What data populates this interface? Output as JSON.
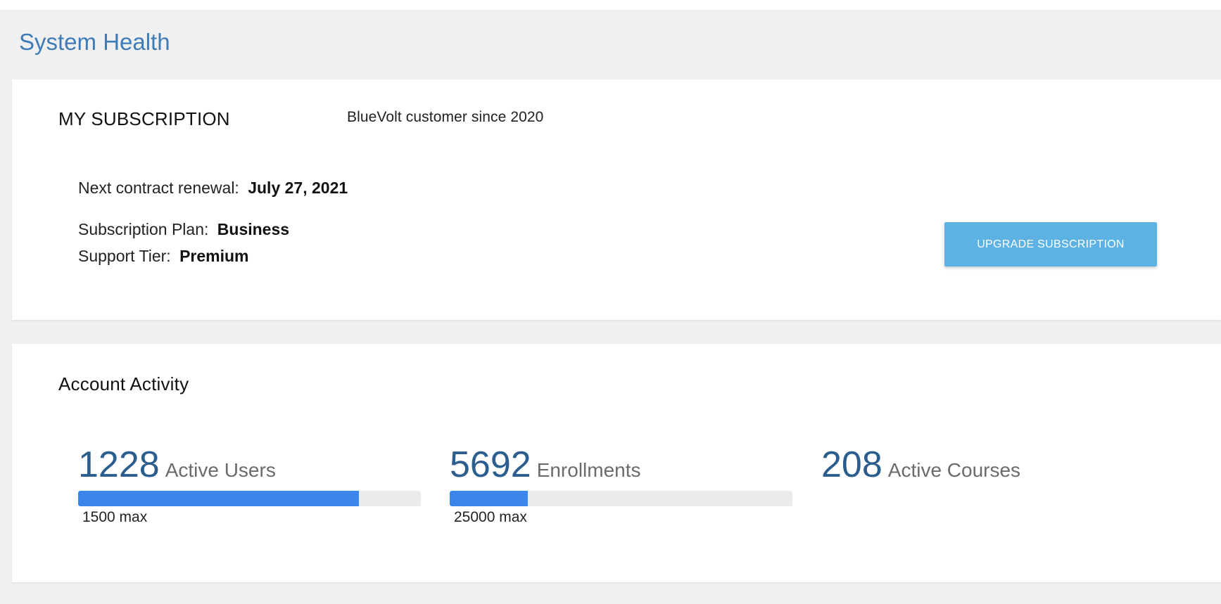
{
  "page": {
    "title": "System Health"
  },
  "subscription": {
    "heading": "MY SUBSCRIPTION",
    "customer_since": "BlueVolt customer since 2020",
    "renewal_label": "Next contract renewal:",
    "renewal_value": "July 27, 2021",
    "plan_label": "Subscription Plan:",
    "plan_value": "Business",
    "tier_label": "Support Tier:",
    "tier_value": "Premium",
    "upgrade_button": "UPGRADE SUBSCRIPTION"
  },
  "activity": {
    "heading": "Account Activity",
    "metrics": [
      {
        "number": "1228",
        "label": "Active Users",
        "max_label": "1500 max",
        "progress_fraction": 0.819
      },
      {
        "number": "5692",
        "label": "Enrollments",
        "max_label": "25000 max",
        "progress_fraction": 0.228
      },
      {
        "number": "208",
        "label": "Active Courses"
      }
    ]
  },
  "colors": {
    "title": "#3d7cb6",
    "metric_number": "#2c5d8f",
    "progress_fill": "#3c85ea",
    "progress_track": "#ebebeb",
    "upgrade_button": "#5cb3e3"
  }
}
